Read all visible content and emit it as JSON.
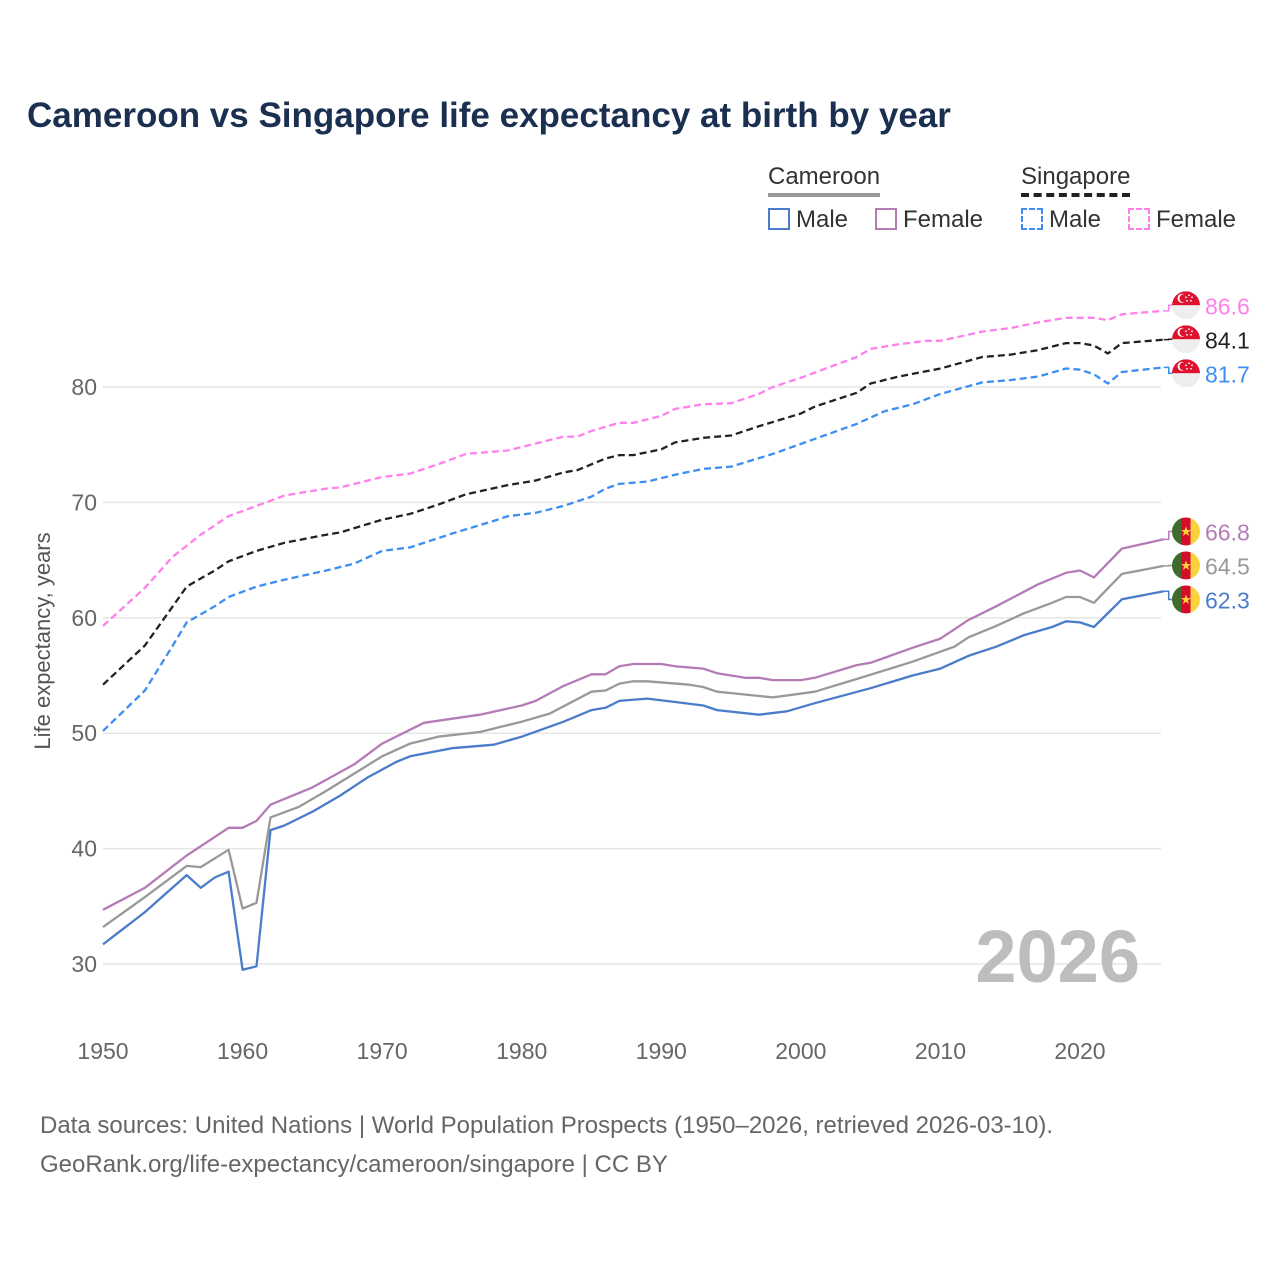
{
  "chart_data": {
    "type": "line",
    "title": "Cameroon vs Singapore life expectancy at birth by year",
    "xlabel": "",
    "ylabel": "Life expectancy, years",
    "xlim": [
      1950,
      2026
    ],
    "ylim": [
      26,
      90
    ],
    "xticks": [
      1950,
      1960,
      1970,
      1980,
      1990,
      2000,
      2010,
      2020
    ],
    "yticks": [
      30,
      40,
      50,
      60,
      70,
      80
    ],
    "grid": true,
    "watermark_year": "2026",
    "legend": {
      "groups": [
        {
          "name": "Cameroon",
          "items": [
            "Male",
            "Female"
          ]
        },
        {
          "name": "Singapore",
          "items": [
            "Male",
            "Female"
          ]
        }
      ],
      "placement": "top-right"
    },
    "series": [
      {
        "name": "Singapore Female",
        "color": "#ff80ec",
        "dashed": true,
        "flag": "singapore",
        "end_label": "86.6",
        "points": [
          [
            1950,
            59.3
          ],
          [
            1953,
            62.6
          ],
          [
            1955,
            65.3
          ],
          [
            1957,
            67.2
          ],
          [
            1959,
            68.8
          ],
          [
            1961,
            69.7
          ],
          [
            1963,
            70.6
          ],
          [
            1966,
            71.2
          ],
          [
            1967,
            71.3
          ],
          [
            1970,
            72.2
          ],
          [
            1972,
            72.5
          ],
          [
            1974,
            73.3
          ],
          [
            1976,
            74.2
          ],
          [
            1979,
            74.5
          ],
          [
            1981,
            75.1
          ],
          [
            1983,
            75.7
          ],
          [
            1984,
            75.7
          ],
          [
            1985,
            76.2
          ],
          [
            1987,
            76.9
          ],
          [
            1988,
            76.9
          ],
          [
            1990,
            77.5
          ],
          [
            1991,
            78.1
          ],
          [
            1993,
            78.5
          ],
          [
            1995,
            78.6
          ],
          [
            1997,
            79.4
          ],
          [
            1998,
            80.0
          ],
          [
            2000,
            80.8
          ],
          [
            2002,
            81.7
          ],
          [
            2004,
            82.6
          ],
          [
            2005,
            83.3
          ],
          [
            2007,
            83.7
          ],
          [
            2009,
            84.0
          ],
          [
            2010,
            84.0
          ],
          [
            2013,
            84.8
          ],
          [
            2015,
            85.1
          ],
          [
            2017,
            85.6
          ],
          [
            2019,
            86.0
          ],
          [
            2021,
            86.0
          ],
          [
            2022,
            85.8
          ],
          [
            2023,
            86.3
          ],
          [
            2026,
            86.6
          ]
        ]
      },
      {
        "name": "Singapore",
        "color": "#222222",
        "dashed": true,
        "flag": "singapore",
        "end_label": "84.1",
        "points": [
          [
            1950,
            54.2
          ],
          [
            1953,
            57.6
          ],
          [
            1955,
            61.0
          ],
          [
            1956,
            62.7
          ],
          [
            1958,
            64.1
          ],
          [
            1959,
            64.9
          ],
          [
            1961,
            65.8
          ],
          [
            1963,
            66.5
          ],
          [
            1966,
            67.2
          ],
          [
            1967,
            67.4
          ],
          [
            1970,
            68.5
          ],
          [
            1972,
            69.0
          ],
          [
            1974,
            69.8
          ],
          [
            1976,
            70.7
          ],
          [
            1979,
            71.5
          ],
          [
            1981,
            71.9
          ],
          [
            1983,
            72.6
          ],
          [
            1984,
            72.8
          ],
          [
            1986,
            73.8
          ],
          [
            1987,
            74.1
          ],
          [
            1988,
            74.1
          ],
          [
            1990,
            74.6
          ],
          [
            1991,
            75.2
          ],
          [
            1993,
            75.6
          ],
          [
            1995,
            75.8
          ],
          [
            1997,
            76.6
          ],
          [
            2000,
            77.7
          ],
          [
            2001,
            78.3
          ],
          [
            2004,
            79.5
          ],
          [
            2005,
            80.3
          ],
          [
            2007,
            80.9
          ],
          [
            2010,
            81.6
          ],
          [
            2013,
            82.6
          ],
          [
            2015,
            82.8
          ],
          [
            2017,
            83.2
          ],
          [
            2019,
            83.8
          ],
          [
            2020,
            83.8
          ],
          [
            2021,
            83.6
          ],
          [
            2022,
            82.9
          ],
          [
            2023,
            83.8
          ],
          [
            2026,
            84.1
          ]
        ]
      },
      {
        "name": "Singapore Male",
        "color": "#3d8ef2",
        "dashed": true,
        "flag": "singapore",
        "end_label": "81.7",
        "points": [
          [
            1950,
            50.2
          ],
          [
            1953,
            53.7
          ],
          [
            1955,
            57.6
          ],
          [
            1956,
            59.6
          ],
          [
            1958,
            61.0
          ],
          [
            1959,
            61.8
          ],
          [
            1961,
            62.7
          ],
          [
            1963,
            63.3
          ],
          [
            1966,
            64.1
          ],
          [
            1968,
            64.7
          ],
          [
            1970,
            65.8
          ],
          [
            1972,
            66.1
          ],
          [
            1973,
            66.5
          ],
          [
            1975,
            67.3
          ],
          [
            1978,
            68.4
          ],
          [
            1979,
            68.8
          ],
          [
            1981,
            69.1
          ],
          [
            1983,
            69.7
          ],
          [
            1985,
            70.5
          ],
          [
            1986,
            71.2
          ],
          [
            1987,
            71.6
          ],
          [
            1989,
            71.8
          ],
          [
            1991,
            72.4
          ],
          [
            1993,
            72.9
          ],
          [
            1995,
            73.1
          ],
          [
            1998,
            74.2
          ],
          [
            2001,
            75.5
          ],
          [
            2004,
            76.8
          ],
          [
            2006,
            77.9
          ],
          [
            2008,
            78.5
          ],
          [
            2010,
            79.4
          ],
          [
            2013,
            80.4
          ],
          [
            2015,
            80.6
          ],
          [
            2017,
            80.9
          ],
          [
            2019,
            81.6
          ],
          [
            2020,
            81.5
          ],
          [
            2021,
            81.1
          ],
          [
            2022,
            80.3
          ],
          [
            2023,
            81.3
          ],
          [
            2026,
            81.7
          ]
        ]
      },
      {
        "name": "Cameroon Female",
        "color": "#b57bb6",
        "dashed": false,
        "flag": "cameroon",
        "end_label": "66.8",
        "points": [
          [
            1950,
            34.7
          ],
          [
            1953,
            36.6
          ],
          [
            1956,
            39.4
          ],
          [
            1959,
            41.8
          ],
          [
            1960,
            41.8
          ],
          [
            1961,
            42.4
          ],
          [
            1962,
            43.8
          ],
          [
            1965,
            45.3
          ],
          [
            1968,
            47.3
          ],
          [
            1970,
            49.1
          ],
          [
            1973,
            50.9
          ],
          [
            1977,
            51.6
          ],
          [
            1980,
            52.4
          ],
          [
            1981,
            52.8
          ],
          [
            1983,
            54.1
          ],
          [
            1985,
            55.1
          ],
          [
            1986,
            55.1
          ],
          [
            1987,
            55.8
          ],
          [
            1988,
            56.0
          ],
          [
            1990,
            56.0
          ],
          [
            1991,
            55.8
          ],
          [
            1993,
            55.6
          ],
          [
            1994,
            55.2
          ],
          [
            1996,
            54.8
          ],
          [
            1997,
            54.8
          ],
          [
            1998,
            54.6
          ],
          [
            2000,
            54.6
          ],
          [
            2001,
            54.8
          ],
          [
            2004,
            55.9
          ],
          [
            2005,
            56.1
          ],
          [
            2008,
            57.4
          ],
          [
            2010,
            58.2
          ],
          [
            2012,
            59.8
          ],
          [
            2014,
            61.0
          ],
          [
            2017,
            62.9
          ],
          [
            2019,
            63.9
          ],
          [
            2020,
            64.1
          ],
          [
            2021,
            63.5
          ],
          [
            2023,
            66.0
          ],
          [
            2026,
            66.8
          ]
        ]
      },
      {
        "name": "Cameroon",
        "color": "#999999",
        "dashed": false,
        "flag": "cameroon",
        "end_label": "64.5",
        "points": [
          [
            1950,
            33.2
          ],
          [
            1953,
            35.8
          ],
          [
            1956,
            38.5
          ],
          [
            1957,
            38.4
          ],
          [
            1959,
            39.9
          ],
          [
            1960,
            34.8
          ],
          [
            1961,
            35.3
          ],
          [
            1962,
            42.7
          ],
          [
            1964,
            43.6
          ],
          [
            1966,
            45.0
          ],
          [
            1968,
            46.5
          ],
          [
            1970,
            48.0
          ],
          [
            1972,
            49.1
          ],
          [
            1974,
            49.7
          ],
          [
            1977,
            50.1
          ],
          [
            1980,
            51.0
          ],
          [
            1982,
            51.7
          ],
          [
            1985,
            53.6
          ],
          [
            1986,
            53.7
          ],
          [
            1987,
            54.3
          ],
          [
            1988,
            54.5
          ],
          [
            1989,
            54.5
          ],
          [
            1992,
            54.2
          ],
          [
            1993,
            54.0
          ],
          [
            1994,
            53.6
          ],
          [
            1998,
            53.1
          ],
          [
            2001,
            53.6
          ],
          [
            2004,
            54.7
          ],
          [
            2008,
            56.2
          ],
          [
            2011,
            57.5
          ],
          [
            2012,
            58.3
          ],
          [
            2014,
            59.3
          ],
          [
            2016,
            60.4
          ],
          [
            2018,
            61.3
          ],
          [
            2019,
            61.8
          ],
          [
            2020,
            61.8
          ],
          [
            2021,
            61.3
          ],
          [
            2023,
            63.8
          ],
          [
            2026,
            64.5
          ]
        ]
      },
      {
        "name": "Cameroon Male",
        "color": "#4a7cc9",
        "dashed": false,
        "flag": "cameroon",
        "end_label": "62.3",
        "points": [
          [
            1950,
            31.7
          ],
          [
            1953,
            34.5
          ],
          [
            1956,
            37.7
          ],
          [
            1957,
            36.6
          ],
          [
            1958,
            37.5
          ],
          [
            1959,
            38.0
          ],
          [
            1960,
            29.5
          ],
          [
            1961,
            29.8
          ],
          [
            1962,
            41.6
          ],
          [
            1963,
            42.0
          ],
          [
            1965,
            43.2
          ],
          [
            1967,
            44.6
          ],
          [
            1969,
            46.2
          ],
          [
            1971,
            47.5
          ],
          [
            1972,
            48.0
          ],
          [
            1975,
            48.7
          ],
          [
            1978,
            49.0
          ],
          [
            1980,
            49.7
          ],
          [
            1983,
            51.0
          ],
          [
            1985,
            52.0
          ],
          [
            1986,
            52.2
          ],
          [
            1987,
            52.8
          ],
          [
            1989,
            53.0
          ],
          [
            1991,
            52.7
          ],
          [
            1993,
            52.4
          ],
          [
            1994,
            52.0
          ],
          [
            1997,
            51.6
          ],
          [
            1999,
            51.9
          ],
          [
            2001,
            52.6
          ],
          [
            2005,
            53.9
          ],
          [
            2008,
            55.0
          ],
          [
            2010,
            55.6
          ],
          [
            2012,
            56.7
          ],
          [
            2014,
            57.5
          ],
          [
            2016,
            58.5
          ],
          [
            2018,
            59.2
          ],
          [
            2019,
            59.7
          ],
          [
            2020,
            59.6
          ],
          [
            2021,
            59.2
          ],
          [
            2023,
            61.6
          ],
          [
            2026,
            62.3
          ]
        ]
      }
    ]
  },
  "footer": {
    "line1": "Data sources: United Nations | World Population Prospects (1950–2026, retrieved 2026-03-10).",
    "line2": "GeoRank.org/life-expectancy/cameroon/singapore | CC BY"
  }
}
